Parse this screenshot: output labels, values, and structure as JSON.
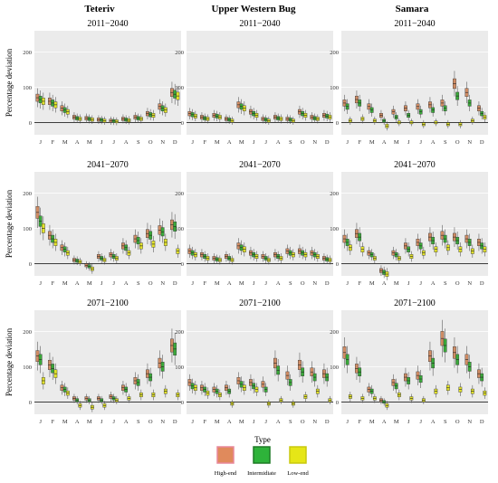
{
  "legend": {
    "title": "Type",
    "items": [
      {
        "label": "High-end",
        "color": "#e08a5c",
        "edge": "#e8889c"
      },
      {
        "label": "Intermidiate",
        "color": "#2eb33a",
        "edge": "#1d7a25"
      },
      {
        "label": "Low-end",
        "color": "#e6e617",
        "edge": "#c9c90e"
      }
    ]
  },
  "colors": {
    "panel_bg": "#ebebeb",
    "grid": "#ffffff",
    "high": "#d08c64",
    "inter": "#3aa83a",
    "low": "#e2e22a"
  },
  "chart_data": {
    "type": "box",
    "ylabel": "Percentage deviation",
    "ylim": [
      -35,
      260
    ],
    "yticks": [
      0,
      100,
      200
    ],
    "months": [
      "J",
      "F",
      "M",
      "A",
      "M",
      "J",
      "J",
      "A",
      "S",
      "O",
      "N",
      "D"
    ],
    "columns": [
      "Teteriv",
      "Upper Western Bug",
      "Samara"
    ],
    "rows": [
      "2011−2040",
      "2041−2070",
      "2071−2100"
    ],
    "panels": [
      {
        "river": "Teteriv",
        "period": "2011−2040",
        "high": [
          70,
          60,
          40,
          15,
          12,
          8,
          5,
          10,
          15,
          25,
          45,
          85
        ],
        "inter": [
          65,
          55,
          35,
          12,
          10,
          7,
          4,
          8,
          12,
          22,
          40,
          80
        ],
        "low": [
          60,
          50,
          30,
          10,
          8,
          5,
          3,
          6,
          10,
          20,
          35,
          75
        ]
      },
      {
        "river": "Upper Western Bug",
        "period": "2011−2040",
        "high": [
          25,
          15,
          20,
          10,
          50,
          30,
          10,
          15,
          10,
          30,
          15,
          20
        ],
        "inter": [
          22,
          12,
          18,
          8,
          45,
          25,
          8,
          12,
          8,
          25,
          12,
          18
        ],
        "low": [
          18,
          10,
          15,
          5,
          40,
          20,
          5,
          10,
          5,
          20,
          10,
          15
        ]
      },
      {
        "river": "Samara",
        "period": "2011−2040",
        "high": [
          55,
          65,
          45,
          20,
          30,
          40,
          45,
          50,
          55,
          110,
          85,
          40
        ],
        "inter": [
          45,
          55,
          35,
          5,
          15,
          20,
          30,
          35,
          40,
          75,
          55,
          25
        ],
        "low": [
          5,
          10,
          5,
          -10,
          0,
          0,
          -5,
          0,
          -5,
          -5,
          5,
          15
        ]
      },
      {
        "river": "Teteriv",
        "period": "2041−2070",
        "high": [
          145,
          80,
          45,
          10,
          -5,
          20,
          25,
          50,
          70,
          85,
          95,
          110
        ],
        "inter": [
          120,
          70,
          40,
          8,
          -8,
          15,
          20,
          45,
          65,
          80,
          90,
          105
        ],
        "low": [
          100,
          60,
          30,
          5,
          -15,
          10,
          15,
          30,
          50,
          55,
          60,
          35
        ]
      },
      {
        "river": "Upper Western Bug",
        "period": "2041−2070",
        "high": [
          35,
          25,
          15,
          20,
          50,
          30,
          20,
          25,
          35,
          35,
          30,
          15
        ],
        "inter": [
          30,
          20,
          12,
          15,
          45,
          25,
          15,
          20,
          30,
          30,
          25,
          12
        ],
        "low": [
          25,
          15,
          10,
          10,
          40,
          20,
          10,
          15,
          25,
          25,
          20,
          10
        ]
      },
      {
        "river": "Samara",
        "period": "2041−2070",
        "high": [
          70,
          85,
          30,
          -20,
          30,
          50,
          60,
          75,
          80,
          75,
          70,
          60
        ],
        "inter": [
          60,
          75,
          25,
          -25,
          25,
          40,
          50,
          65,
          70,
          65,
          60,
          50
        ],
        "low": [
          45,
          40,
          15,
          -30,
          15,
          20,
          30,
          40,
          45,
          40,
          35,
          40
        ]
      },
      {
        "river": "Teteriv",
        "period": "2071−2100",
        "high": [
          130,
          105,
          40,
          10,
          10,
          10,
          15,
          40,
          60,
          80,
          110,
          160
        ],
        "inter": [
          120,
          95,
          35,
          5,
          5,
          5,
          10,
          35,
          55,
          70,
          100,
          150
        ],
        "low": [
          60,
          80,
          25,
          -10,
          -15,
          -10,
          5,
          10,
          20,
          20,
          30,
          20
        ]
      },
      {
        "river": "Upper Western Bug",
        "period": "2071−2100",
        "high": [
          55,
          40,
          35,
          40,
          60,
          55,
          50,
          110,
          75,
          105,
          85,
          80
        ],
        "inter": [
          45,
          35,
          30,
          30,
          50,
          45,
          35,
          90,
          55,
          85,
          70,
          70
        ],
        "low": [
          40,
          25,
          20,
          -5,
          40,
          35,
          -5,
          5,
          -5,
          15,
          30,
          5
        ]
      },
      {
        "river": "Samara",
        "period": "2071−2100",
        "high": [
          140,
          95,
          35,
          5,
          55,
          70,
          75,
          130,
          180,
          140,
          120,
          80
        ],
        "inter": [
          120,
          85,
          30,
          0,
          45,
          60,
          65,
          110,
          160,
          120,
          100,
          70
        ],
        "low": [
          15,
          10,
          10,
          -10,
          20,
          10,
          5,
          30,
          40,
          35,
          30,
          25
        ]
      }
    ]
  }
}
